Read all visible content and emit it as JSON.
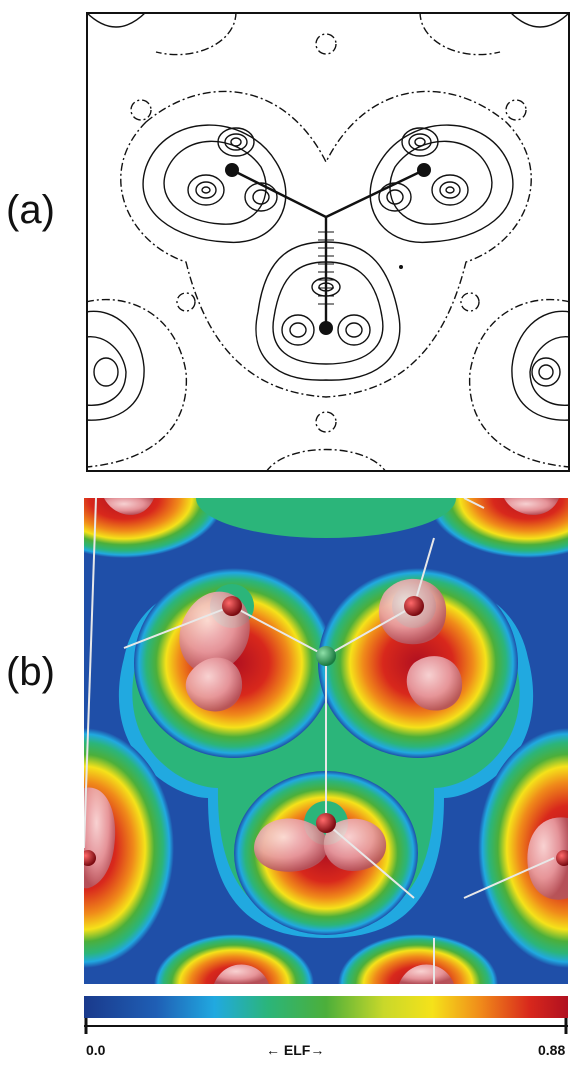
{
  "panels": {
    "a": {
      "label": "(a)"
    },
    "b": {
      "label": "(b)"
    }
  },
  "colorbar": {
    "min_label": "0.0",
    "mid_label": "← ELF→",
    "max_label": "0.88",
    "colors": [
      "#1a3a8c",
      "#1f5fb5",
      "#21a9e0",
      "#2bb57a",
      "#4caf3a",
      "#c9d82a",
      "#f5e21a",
      "#f08a1a",
      "#d8281c",
      "#b01020"
    ]
  },
  "colors": {
    "background": "#ffffff",
    "contour": "#111111",
    "map_low": "#1f4fa8",
    "map_high": "#c81c1c",
    "atom_center": "#2aa05a",
    "atom_outer": "#9b0f16"
  }
}
